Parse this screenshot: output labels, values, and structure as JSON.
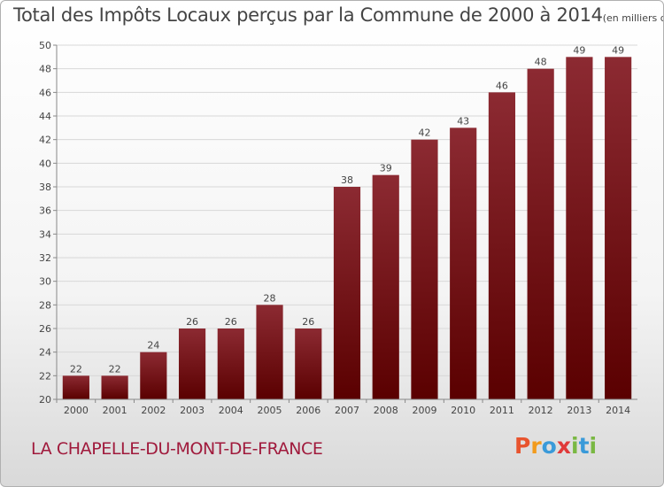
{
  "title": "Total des Impôts Locaux perçus par la Commune de 2000 à 2014",
  "unit_note": "(en milliers d'€)",
  "commune": "LA CHAPELLE-DU-MONT-DE-FRANCE",
  "logo": {
    "letters": [
      "P",
      "r",
      "o",
      "x",
      "i",
      "t",
      "i"
    ],
    "colors": [
      "#e8542e",
      "#f29b1d",
      "#3a9ad9",
      "#e03a3a",
      "#7ab843",
      "#3a9ad9",
      "#7ab843"
    ]
  },
  "colors": {
    "bar_top": "#8c2a32",
    "bar_bottom": "#5a0000",
    "grid": "#d8d8d8",
    "commune_text": "#a01a3c"
  },
  "chart_data": {
    "type": "bar",
    "categories": [
      "2000",
      "2001",
      "2002",
      "2003",
      "2004",
      "2005",
      "2006",
      "2007",
      "2008",
      "2009",
      "2010",
      "2011",
      "2012",
      "2013",
      "2014"
    ],
    "values": [
      22,
      22,
      24,
      26,
      26,
      28,
      26,
      38,
      39,
      42,
      43,
      46,
      48,
      49,
      49
    ],
    "data_labels": [
      "22",
      "22",
      "24",
      "26",
      "26",
      "28",
      "26",
      "38",
      "39",
      "42",
      "43",
      "46",
      "48",
      "49",
      "49"
    ],
    "yticks": [
      "20",
      "22",
      "24",
      "26",
      "28",
      "30",
      "32",
      "34",
      "36",
      "38",
      "40",
      "42",
      "44",
      "46",
      "48",
      "50"
    ],
    "ylim": [
      20,
      50
    ],
    "grid": true,
    "xlabel": "",
    "ylabel": ""
  }
}
